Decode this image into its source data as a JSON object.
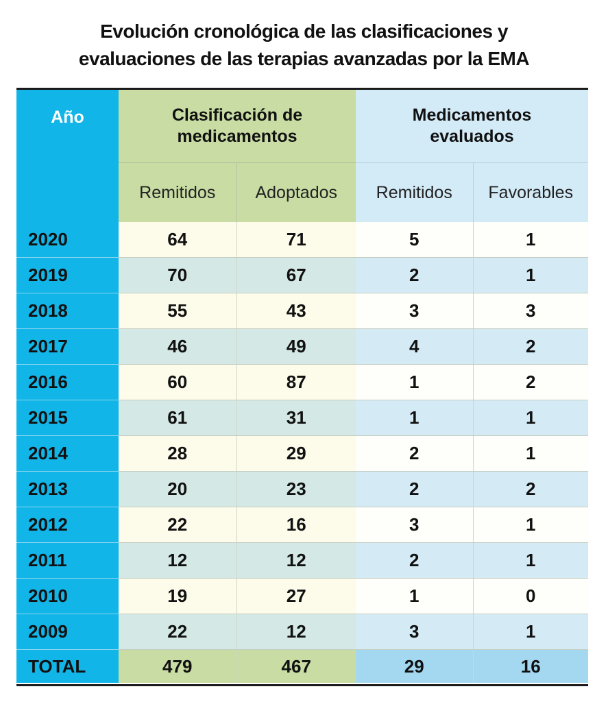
{
  "title": [
    "Evolución cronológica de las clasificaciones y",
    "evaluaciones de las terapias avanzadas por la EMA"
  ],
  "colors": {
    "year_column": "#12b5e8",
    "classification_header": "#c8dca3",
    "evaluated_header": "#d3eaf7",
    "total_evaluated": "#a4d8f0"
  },
  "chart_data": {
    "type": "table",
    "header": {
      "year": "Año",
      "group_classification": "Clasificación de medicamentos",
      "group_evaluated": "Medicamentos evaluados",
      "columns": [
        "Remitidos",
        "Adoptados",
        "Remitidos",
        "Favorables"
      ]
    },
    "rows": [
      {
        "year": "2020",
        "values": [
          "64",
          "71",
          "5",
          "1"
        ]
      },
      {
        "year": "2019",
        "values": [
          "70",
          "67",
          "2",
          "1"
        ]
      },
      {
        "year": "2018",
        "values": [
          "55",
          "43",
          "3",
          "3"
        ]
      },
      {
        "year": "2017",
        "values": [
          "46",
          "49",
          "4",
          "2"
        ]
      },
      {
        "year": "2016",
        "values": [
          "60",
          "87",
          "1",
          "2"
        ]
      },
      {
        "year": "2015",
        "values": [
          "61",
          "31",
          "1",
          "1"
        ]
      },
      {
        "year": "2014",
        "values": [
          "28",
          "29",
          "2",
          "1"
        ]
      },
      {
        "year": "2013",
        "values": [
          "20",
          "23",
          "2",
          "2"
        ]
      },
      {
        "year": "2012",
        "values": [
          "22",
          "16",
          "3",
          "1"
        ]
      },
      {
        "year": "2011",
        "values": [
          "12",
          "12",
          "2",
          "1"
        ]
      },
      {
        "year": "2010",
        "values": [
          "19",
          "27",
          "1",
          "0"
        ]
      },
      {
        "year": "2009",
        "values": [
          "22",
          "12",
          "3",
          "1"
        ]
      }
    ],
    "total": {
      "label": "TOTAL",
      "values": [
        "479",
        "467",
        "29",
        "16"
      ]
    }
  }
}
